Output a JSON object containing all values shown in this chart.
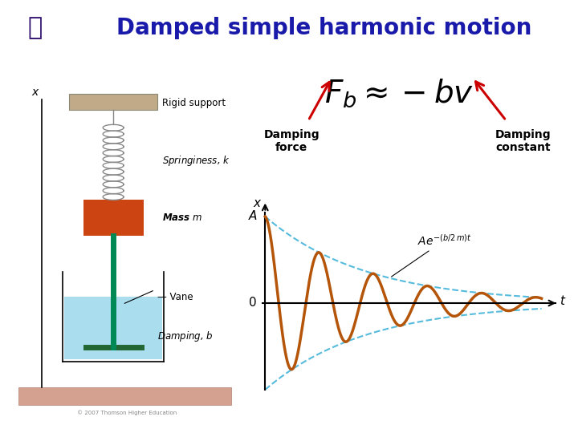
{
  "title": "Damped simple harmonic motion",
  "title_color": "#1a1aaa",
  "title_fontsize": 20,
  "background_color": "#ffffff",
  "formula_text": "$F_b \\approx -bv$",
  "damping_force_label": "Damping\nforce",
  "damping_constant_label": "Damping\nconstant",
  "envelope_label": "$Ae^{-(b/2\\,m)t}$",
  "A_label": "A",
  "zero_label": "0",
  "x_axis_label": "x",
  "t_axis_label": "t",
  "oscillation_color": "#b5550a",
  "envelope_color": "#55bbdd",
  "arrow_color": "#cc0000",
  "b": 0.55,
  "omega": 3.2,
  "t_max": 10.0,
  "amplitude": 1.0,
  "logo_color": "#2a0a6a",
  "floor_color": "#d4a090",
  "support_color": "#c0aa88",
  "water_color": "#aaddee",
  "mass_color": "#cc4411",
  "rod_color": "#008855",
  "vane_color": "#226633"
}
